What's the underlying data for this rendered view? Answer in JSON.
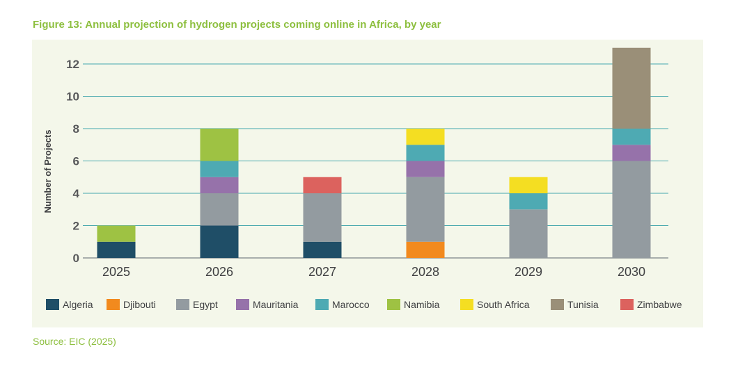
{
  "figure": {
    "title": "Figure 13: Annual projection of hydrogen projects coming online in Africa, by year",
    "source": "Source: EIC (2025)"
  },
  "chart_data": {
    "type": "bar",
    "stacked": true,
    "title": "",
    "xlabel": "",
    "ylabel": "Number of Projects",
    "ylim": [
      0,
      12
    ],
    "yticks": [
      0,
      2,
      4,
      6,
      8,
      10,
      12
    ],
    "grid": true,
    "legend_position": "bottom",
    "categories": [
      "2025",
      "2026",
      "2027",
      "2028",
      "2029",
      "2030"
    ],
    "series": [
      {
        "name": "Algeria",
        "color": "#1f4e67",
        "values": [
          1,
          2,
          1,
          0,
          0,
          0
        ]
      },
      {
        "name": "Djibouti",
        "color": "#f28a1e",
        "values": [
          0,
          0,
          0,
          1,
          0,
          0
        ]
      },
      {
        "name": "Egypt",
        "color": "#939ba0",
        "values": [
          0,
          2,
          3,
          4,
          3,
          6
        ]
      },
      {
        "name": "Mauritania",
        "color": "#9672aa",
        "values": [
          0,
          1,
          0,
          1,
          0,
          1
        ]
      },
      {
        "name": "Marocco",
        "color": "#4eaab3",
        "values": [
          0,
          1,
          0,
          1,
          1,
          1
        ]
      },
      {
        "name": "Namibia",
        "color": "#9ec243",
        "values": [
          1,
          2,
          0,
          0,
          0,
          0
        ]
      },
      {
        "name": "South Africa",
        "color": "#f4de22",
        "values": [
          0,
          0,
          0,
          1,
          1,
          0
        ]
      },
      {
        "name": "Tunisia",
        "color": "#9a8f78",
        "values": [
          0,
          0,
          0,
          0,
          0,
          5
        ]
      },
      {
        "name": "Zimbabwe",
        "color": "#dc625e",
        "values": [
          0,
          0,
          1,
          0,
          0,
          0
        ]
      }
    ]
  }
}
